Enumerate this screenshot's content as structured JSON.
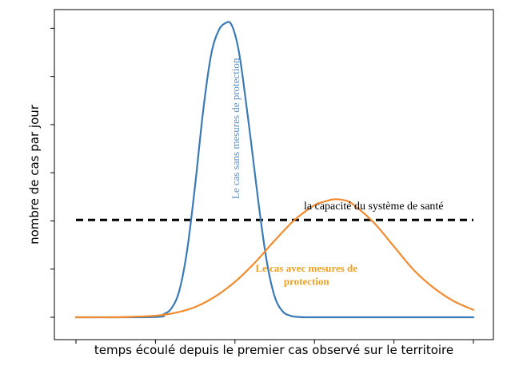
{
  "chart_data": {
    "type": "line",
    "xlabel": "temps écoulé depuis le premier cas observé sur le territoire",
    "ylabel": "nombre de cas par jour",
    "xlim": [
      0,
      100
    ],
    "ylim": [
      0,
      100
    ],
    "x_ticks": 6,
    "y_ticks": 7,
    "x_ticklabels": [],
    "y_ticklabels": [],
    "grid": false,
    "series": [
      {
        "name": "Le cas sans mesures de protection",
        "color": "#3b7bb5",
        "x": [
          0,
          20,
          22,
          24,
          26,
          28,
          30,
          32,
          34,
          36,
          38,
          39,
          40,
          41,
          42,
          44,
          46,
          48,
          50,
          52,
          54,
          56,
          58,
          60,
          100
        ],
        "y": [
          0,
          0.1,
          1,
          3,
          9,
          23,
          45,
          70,
          89,
          97.5,
          100,
          99.5,
          96,
          90,
          81,
          60,
          38,
          19,
          7,
          2,
          0.5,
          0.1,
          0,
          0,
          0
        ]
      },
      {
        "name": "Le cas avec mesures de protection",
        "color": "#f28a2e",
        "x": [
          0,
          10,
          15,
          20,
          25,
          30,
          35,
          40,
          45,
          50,
          55,
          60,
          62,
          65,
          68,
          70,
          75,
          80,
          85,
          90,
          95,
          100
        ],
        "y": [
          0,
          0,
          0.2,
          0.5,
          1.5,
          3.5,
          7,
          12,
          18.5,
          26,
          33,
          38,
          39,
          40,
          39.5,
          38,
          32,
          24,
          16,
          10,
          5.5,
          2.5
        ]
      }
    ],
    "capacity_line": {
      "label": "la capacité du système de santé",
      "y": 33,
      "x_start": 0,
      "x_end": 100,
      "color": "#000000",
      "style": "dashed"
    },
    "annotations": [
      {
        "text": "Le cas sans mesures de protection",
        "color": "#5b8fc9",
        "x": 41,
        "y": 64,
        "rotation": -90
      },
      {
        "text": "Le cas avec mesures de",
        "color": "#f0a020",
        "x": 58,
        "y": 15.5
      },
      {
        "text": "protection",
        "color": "#f0a020",
        "x": 58,
        "y": 11
      }
    ]
  }
}
